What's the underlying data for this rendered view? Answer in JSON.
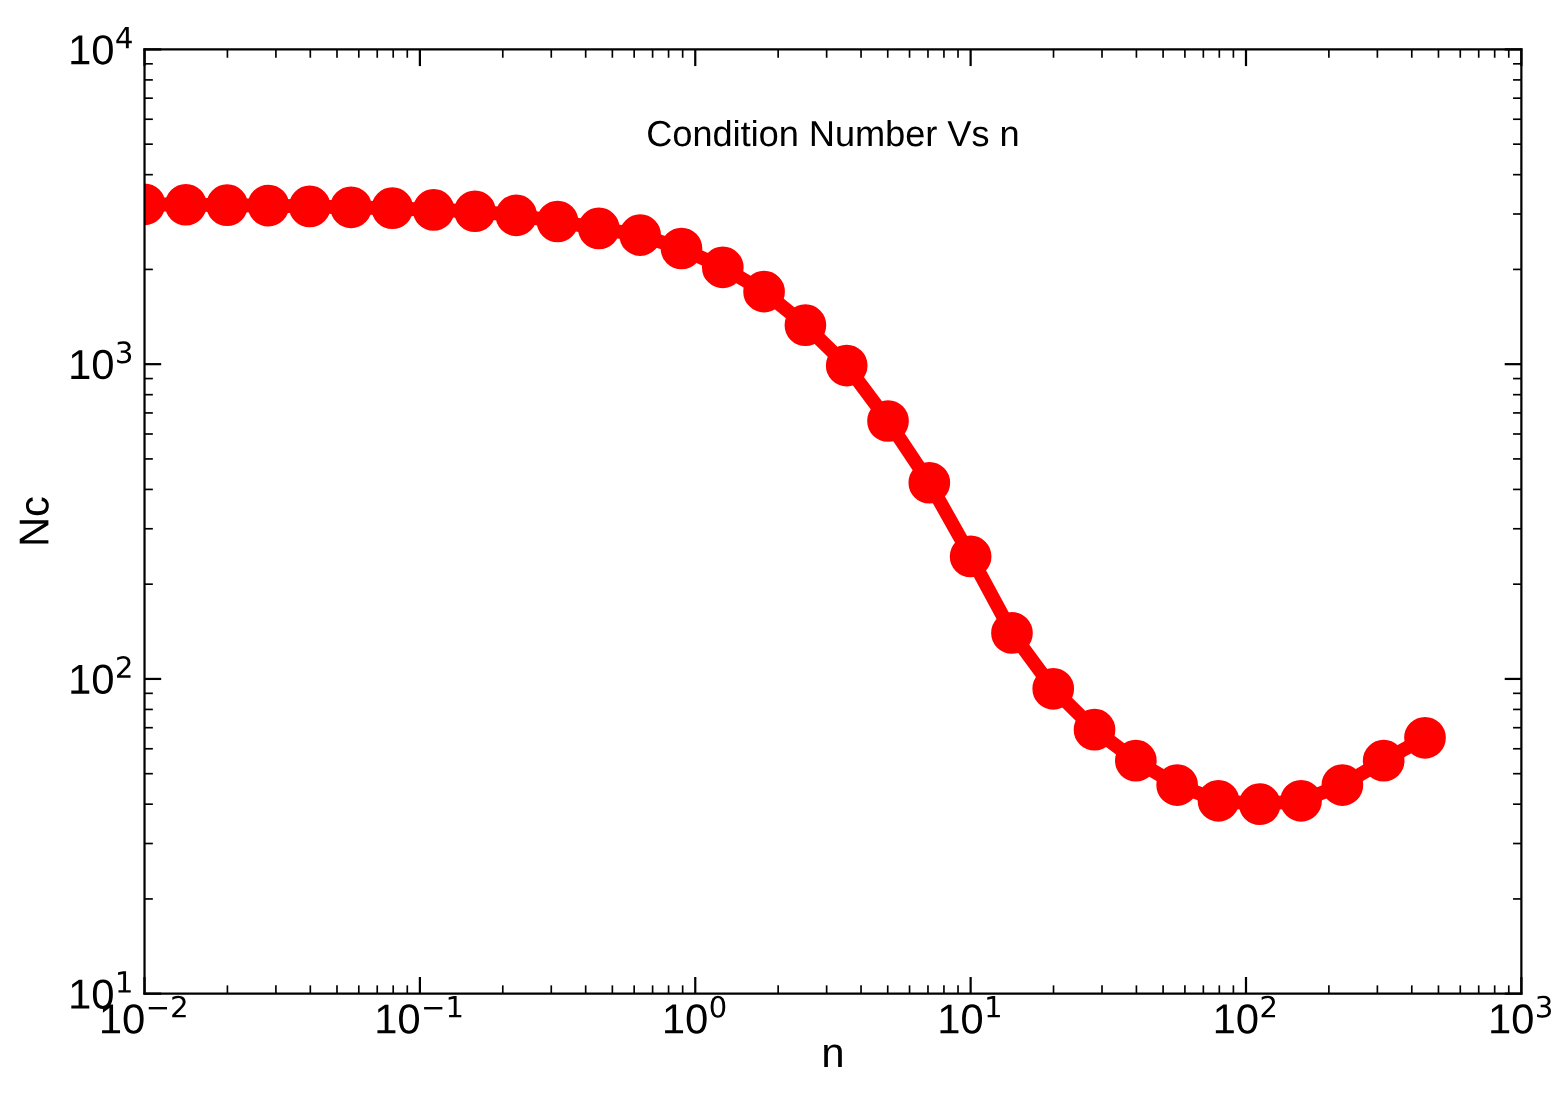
{
  "chart_data": {
    "type": "line",
    "title": "Condition Number Vs n",
    "xlabel": "n",
    "ylabel": "Nc",
    "x": [
      0.01,
      0.01413,
      0.01995,
      0.02818,
      0.03981,
      0.05623,
      0.07943,
      0.1122,
      0.1585,
      0.2239,
      0.3162,
      0.4467,
      0.631,
      0.8913,
      1.259,
      1.778,
      2.512,
      3.548,
      5.012,
      7.079,
      10,
      14.13,
      19.95,
      28.18,
      39.81,
      56.23,
      79.43,
      112.2,
      158.5,
      223.9,
      316.2,
      446.7
    ],
    "series": [
      {
        "color": "#ff0000",
        "values": [
          3220,
          3210,
          3200,
          3190,
          3170,
          3150,
          3130,
          3090,
          3060,
          2970,
          2840,
          2700,
          2570,
          2330,
          2030,
          1700,
          1330,
          990,
          660,
          420,
          245,
          140,
          93,
          69,
          55,
          46,
          41,
          40,
          41,
          46,
          55,
          65
        ]
      }
    ],
    "log": "xy",
    "marker": "circle",
    "line_style": "solid",
    "grid": false,
    "legend": false,
    "xlim": [
      0.01,
      1000
    ],
    "ylim": [
      10,
      10000
    ],
    "xticks": [
      {
        "value": 0.01,
        "label": "10$^{−2}$"
      },
      {
        "value": 0.1,
        "label": "10$^{−1}$"
      },
      {
        "value": 1,
        "label": "10$^{0}$"
      },
      {
        "value": 10,
        "label": "10$^{1}$"
      },
      {
        "value": 100,
        "label": "10$^{2}$"
      },
      {
        "value": 1000,
        "label": "10$^{3}$"
      }
    ],
    "yticks": [
      {
        "value": 10,
        "label": "10$^{1}$"
      },
      {
        "value": 100,
        "label": "10$^{2}$"
      },
      {
        "value": 1000,
        "label": "10$^{3}$"
      },
      {
        "value": 10000,
        "label": "10$^{4}$"
      }
    ]
  }
}
